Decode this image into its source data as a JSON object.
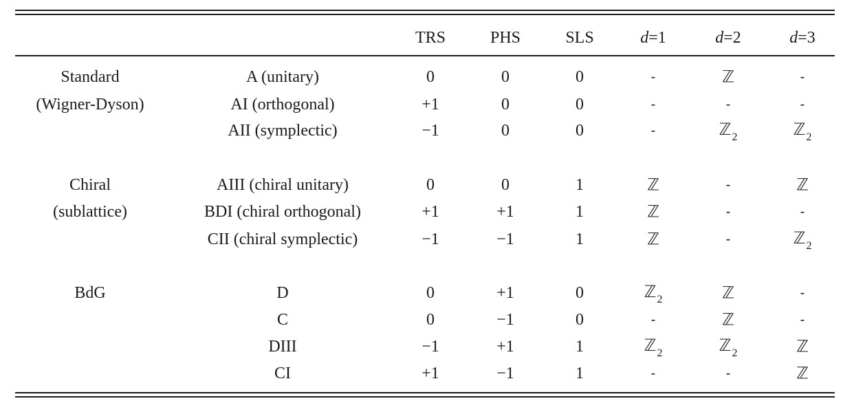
{
  "table": {
    "headers": [
      "",
      "",
      "TRS",
      "PHS",
      "SLS",
      "d=1",
      "d=2",
      "d=3"
    ],
    "groups": [
      {
        "label_lines": [
          "Standard",
          "(Wigner-Dyson)"
        ],
        "rows": [
          {
            "cls": "A (unitary)",
            "TRS": "0",
            "PHS": "0",
            "SLS": "0",
            "d1": "-",
            "d2": "ℤ",
            "d3": "-"
          },
          {
            "cls": "AI (orthogonal)",
            "TRS": "+1",
            "PHS": "0",
            "SLS": "0",
            "d1": "-",
            "d2": "-",
            "d3": "-"
          },
          {
            "cls": "AII (symplectic)",
            "TRS": "−1",
            "PHS": "0",
            "SLS": "0",
            "d1": "-",
            "d2": "ℤ2",
            "d3": "ℤ2"
          }
        ]
      },
      {
        "label_lines": [
          "Chiral",
          "(sublattice)"
        ],
        "rows": [
          {
            "cls": "AIII (chiral unitary)",
            "TRS": "0",
            "PHS": "0",
            "SLS": "1",
            "d1": "ℤ",
            "d2": "-",
            "d3": "ℤ"
          },
          {
            "cls": "BDI (chiral orthogonal)",
            "TRS": "+1",
            "PHS": "+1",
            "SLS": "1",
            "d1": "ℤ",
            "d2": "-",
            "d3": "-"
          },
          {
            "cls": "CII (chiral symplectic)",
            "TRS": "−1",
            "PHS": "−1",
            "SLS": "1",
            "d1": "ℤ",
            "d2": "-",
            "d3": "ℤ2"
          }
        ]
      },
      {
        "label_lines": [
          "BdG"
        ],
        "rows": [
          {
            "cls": "D",
            "TRS": "0",
            "PHS": "+1",
            "SLS": "0",
            "d1": "ℤ2",
            "d2": "ℤ",
            "d3": "-"
          },
          {
            "cls": "C",
            "TRS": "0",
            "PHS": "−1",
            "SLS": "0",
            "d1": "-",
            "d2": "ℤ",
            "d3": "-"
          },
          {
            "cls": "DIII",
            "TRS": "−1",
            "PHS": "+1",
            "SLS": "1",
            "d1": "ℤ2",
            "d2": "ℤ2",
            "d3": "ℤ"
          },
          {
            "cls": "CI",
            "TRS": "+1",
            "PHS": "−1",
            "SLS": "1",
            "d1": "-",
            "d2": "-",
            "d3": "ℤ"
          }
        ]
      }
    ]
  }
}
